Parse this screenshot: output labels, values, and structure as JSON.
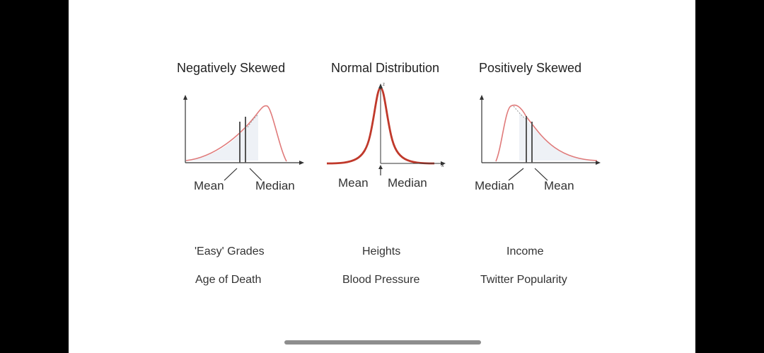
{
  "charts": [
    {
      "title": "Negatively Skewed",
      "labels": [
        "Mean",
        "Median"
      ],
      "examples": [
        "'Easy' Grades",
        "Age of Death"
      ]
    },
    {
      "title": "Normal Distribution",
      "labels": [
        "Mean",
        "Median"
      ],
      "examples": [
        "Heights",
        "Blood Pressure"
      ],
      "axis_x": "x",
      "axis_y": "z"
    },
    {
      "title": "Positively Skewed",
      "labels": [
        "Median",
        "Mean"
      ],
      "examples": [
        "Income",
        "Twitter Popularity"
      ]
    }
  ],
  "colors": {
    "curve": "#c0392b",
    "curve_light": "#e07a7a",
    "axis": "#333333",
    "fill": "#eef1f6"
  }
}
